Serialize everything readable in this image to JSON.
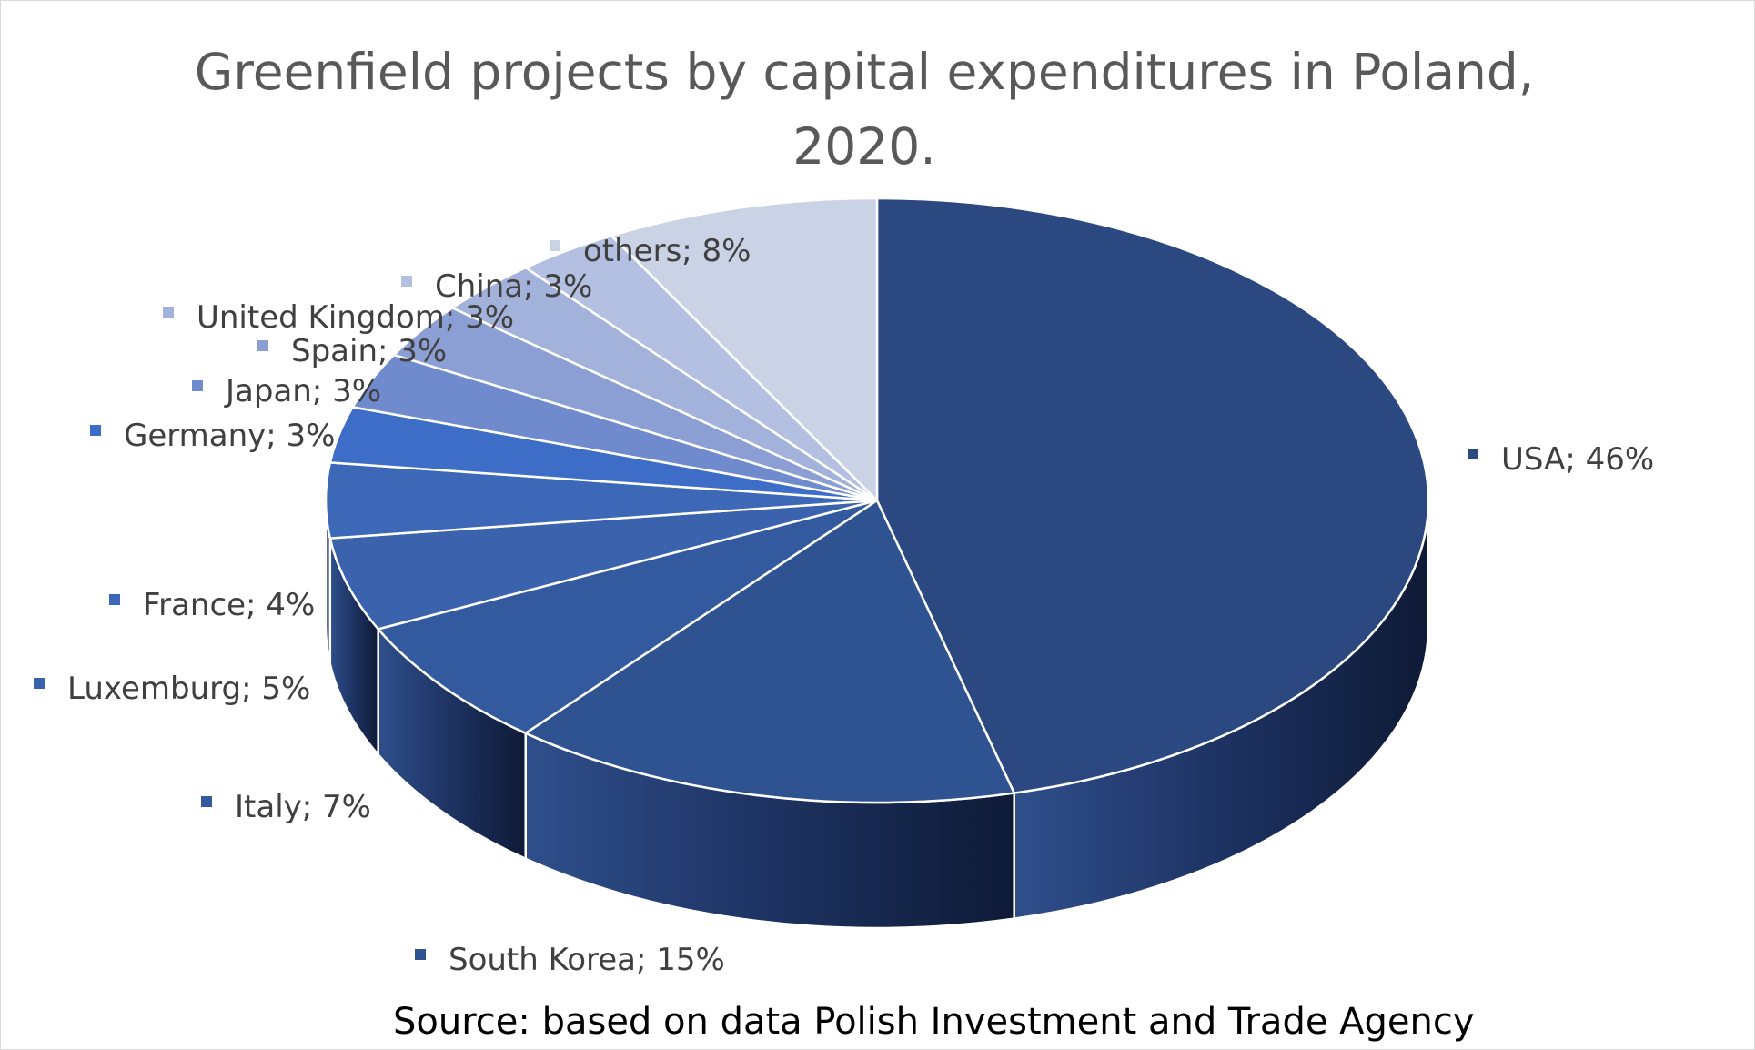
{
  "chart_data": {
    "type": "pie",
    "title": "Greenfield projects by capital expenditures in Poland, 2020.",
    "slices": [
      {
        "label": "USA",
        "value": 46,
        "display": "USA; 46%",
        "color": "#2b4880"
      },
      {
        "label": "South Korea",
        "value": 15,
        "display": "South Korea; 15%",
        "color": "#2f5290"
      },
      {
        "label": "Italy",
        "value": 7,
        "display": "Italy; 7%",
        "color": "#335a9e"
      },
      {
        "label": "Luxemburg",
        "value": 5,
        "display": "Luxemburg; 5%",
        "color": "#3a62ad"
      },
      {
        "label": "France",
        "value": 4,
        "display": "France; 4%",
        "color": "#3d68b8"
      },
      {
        "label": "Germany",
        "value": 3,
        "display": "Germany; 3%",
        "color": "#3e6dc7"
      },
      {
        "label": "Japan",
        "value": 3,
        "display": "Japan; 3%",
        "color": "#6f8bcd"
      },
      {
        "label": "Spain",
        "value": 3,
        "display": "Spain; 3%",
        "color": "#8b9fd4"
      },
      {
        "label": "United Kingdom",
        "value": 3,
        "display": "United Kingdom; 3%",
        "color": "#a2b2da"
      },
      {
        "label": "China",
        "value": 3,
        "display": "China; 3%",
        "color": "#b4c0e1"
      },
      {
        "label": "others",
        "value": 8,
        "display": "others; 8%",
        "color": "#cad2e6"
      }
    ],
    "source": "Source: based on data Polish Investment and Trade Agency"
  }
}
